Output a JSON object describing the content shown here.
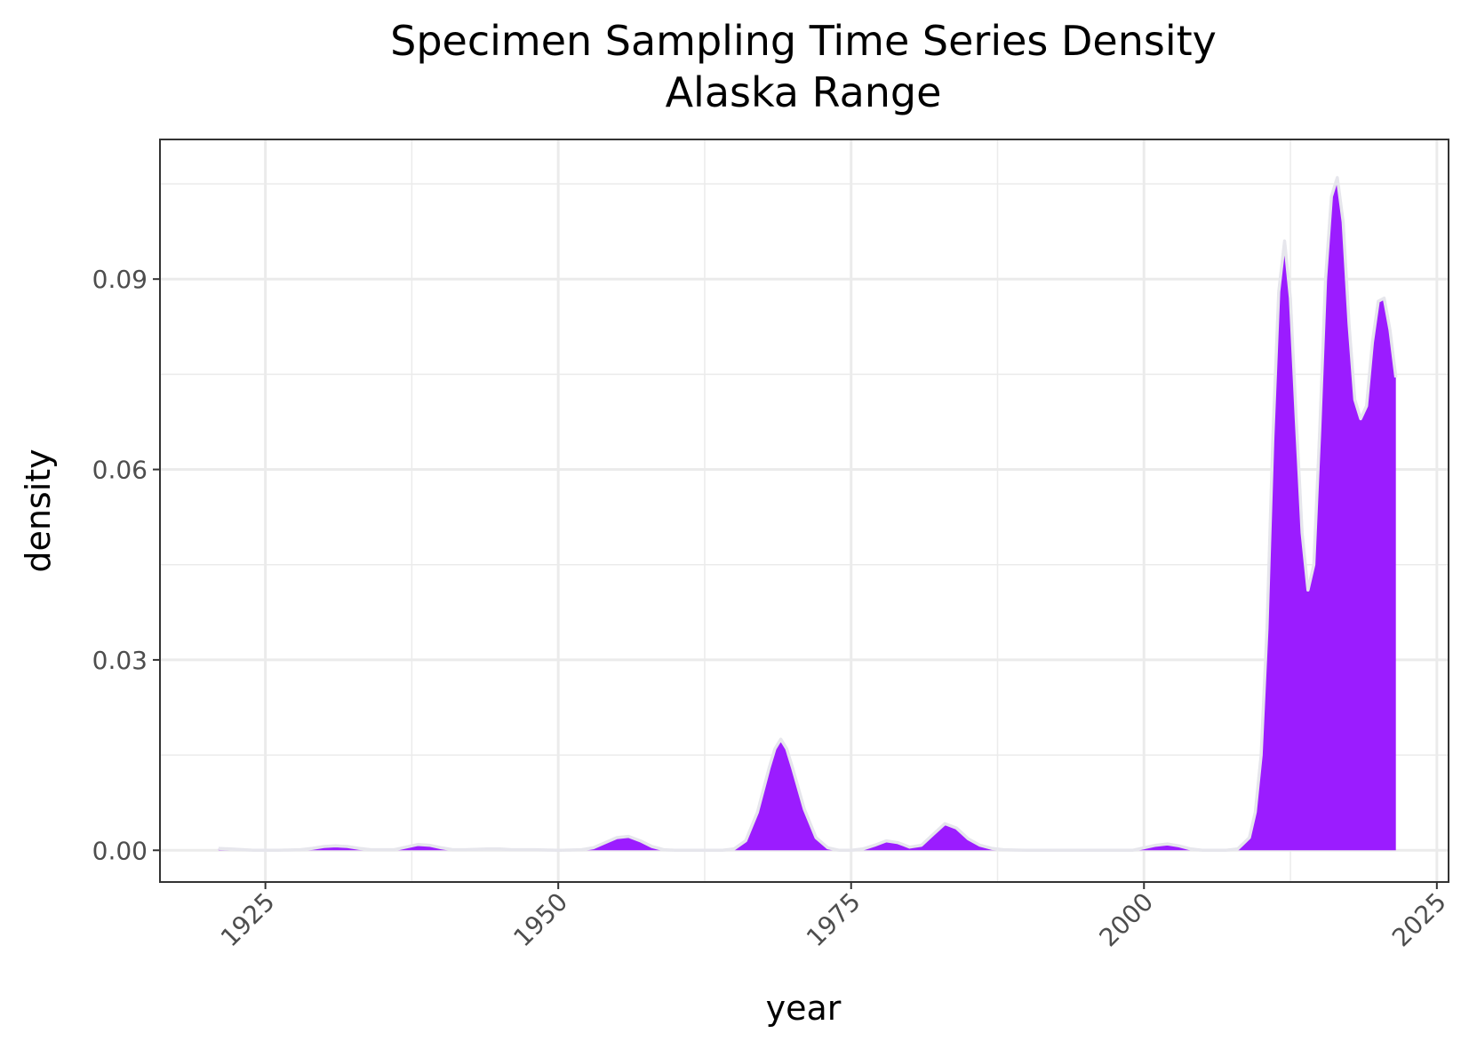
{
  "chart_data": {
    "type": "area",
    "title": "Specimen Sampling Time Series Density",
    "subtitle": "Alaska Range",
    "xlabel": "year",
    "ylabel": "density",
    "xlim": [
      1916,
      2026
    ],
    "ylim": [
      -0.005,
      0.112
    ],
    "x_ticks": [
      1925,
      1950,
      1975,
      2000,
      2025
    ],
    "x_tick_labels": [
      "1925",
      "1950",
      "1975",
      "2000",
      "2025"
    ],
    "y_ticks": [
      0.0,
      0.03,
      0.06,
      0.09
    ],
    "y_tick_labels": [
      "0.00",
      "0.03",
      "0.06",
      "0.09"
    ],
    "grid": true,
    "fill_color": "#9b1cff",
    "outline_color": "#e6e6ec",
    "series": [
      {
        "x": [
          1921,
          1922,
          1924,
          1926,
          1928,
          1929,
          1930,
          1931,
          1932,
          1933,
          1934,
          1936,
          1937,
          1938,
          1939,
          1940,
          1941,
          1942,
          1944,
          1945,
          1946,
          1948,
          1950,
          1952,
          1953,
          1954,
          1955,
          1956,
          1957,
          1958,
          1959,
          1960,
          1962,
          1964,
          1965,
          1966,
          1967,
          1968,
          1968.5,
          1969,
          1969.5,
          1970,
          1971,
          1972,
          1973,
          1974,
          1975,
          1976,
          1977,
          1978,
          1979,
          1980,
          1981,
          1982,
          1983,
          1984,
          1985,
          1986,
          1987,
          1988,
          1990,
          1995,
          1999,
          2000,
          2001,
          2002,
          2003,
          2004,
          2005,
          2006,
          2007,
          2008,
          2009,
          2009.5,
          2010,
          2010.5,
          2011,
          2011.5,
          2012,
          2012.5,
          2013,
          2013.5,
          2014,
          2014.5,
          2015,
          2015.5,
          2016,
          2016.5,
          2017,
          2017.5,
          2018,
          2018.5,
          2019,
          2019.5,
          2020,
          2020.5,
          2021,
          2021.5
        ],
        "y": [
          0.0003,
          0.0002,
          0.0,
          0.0,
          0.0001,
          0.0003,
          0.0006,
          0.0007,
          0.0006,
          0.0003,
          0.0001,
          0.0001,
          0.0005,
          0.0009,
          0.0008,
          0.0004,
          0.0001,
          0.0001,
          0.0002,
          0.0002,
          0.0001,
          0.0001,
          0.0,
          0.0001,
          0.0004,
          0.0012,
          0.002,
          0.0022,
          0.0015,
          0.0006,
          0.0001,
          0.0,
          0.0,
          0.0,
          0.0002,
          0.0015,
          0.006,
          0.013,
          0.016,
          0.0175,
          0.016,
          0.013,
          0.0065,
          0.002,
          0.0004,
          0.0,
          0.0,
          0.0002,
          0.0008,
          0.0015,
          0.0012,
          0.0005,
          0.0008,
          0.0025,
          0.0042,
          0.0035,
          0.0018,
          0.0008,
          0.0003,
          0.0001,
          0.0,
          0.0,
          0.0,
          0.0004,
          0.0008,
          0.001,
          0.0007,
          0.0002,
          0.0,
          0.0,
          0.0,
          0.0002,
          0.002,
          0.006,
          0.015,
          0.035,
          0.065,
          0.088,
          0.096,
          0.087,
          0.068,
          0.05,
          0.041,
          0.045,
          0.066,
          0.09,
          0.103,
          0.106,
          0.099,
          0.083,
          0.071,
          0.068,
          0.07,
          0.08,
          0.0865,
          0.087,
          0.082,
          0.0745
        ]
      }
    ]
  }
}
